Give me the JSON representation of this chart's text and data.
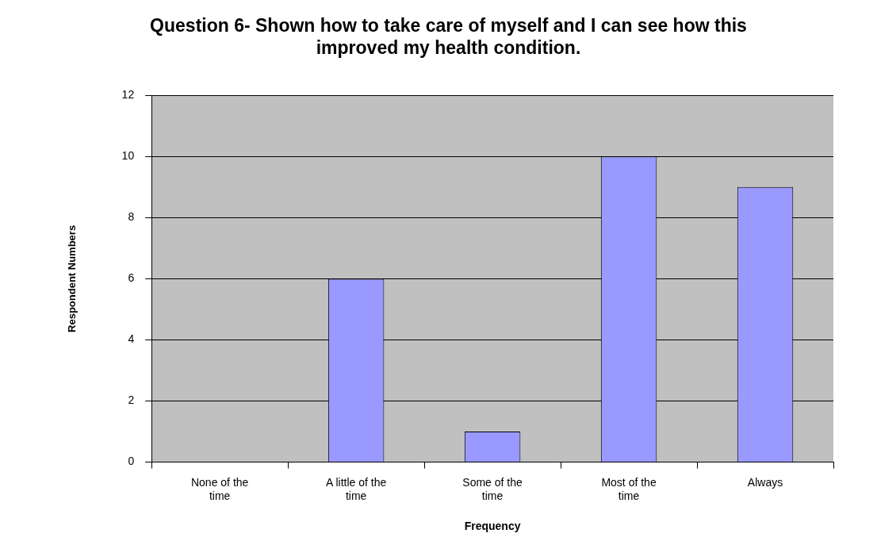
{
  "chart_data": {
    "type": "bar",
    "title": "Question 6- Shown how to take care of myself and I can see how this improved my health condition.",
    "xlabel": "Frequency",
    "ylabel": "Respondent Numbers",
    "categories": [
      "None of the time",
      "A little of the time",
      "Some of the time",
      "Most of the time",
      "Always"
    ],
    "values": [
      0,
      6,
      1,
      10,
      9
    ],
    "color": "#9999ff",
    "ylim": [
      0,
      12
    ],
    "yticks": [
      0,
      2,
      4,
      6,
      8,
      10,
      12
    ],
    "grid": "y",
    "legend": false
  }
}
